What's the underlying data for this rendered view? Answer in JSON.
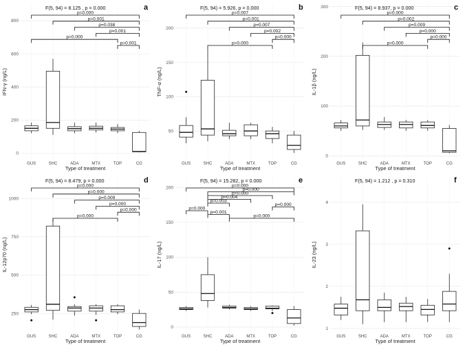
{
  "chart_data": [
    {
      "type": "boxplot",
      "panel": "a",
      "stat": "F(5, 94) = 8.125 , p = 0.000",
      "ylabel": "IFN-γ (ng/L)",
      "xlabel": "Type of treatment",
      "categories": [
        "GUS",
        "SHC",
        "ADA",
        "MTX",
        "TOP",
        "CG"
      ],
      "ylim": [
        -40,
        900
      ],
      "yticks": [
        0,
        200,
        400,
        600,
        800
      ],
      "boxes": [
        {
          "min": 120,
          "q1": 135,
          "median": 150,
          "q3": 165,
          "max": 185,
          "outliers": []
        },
        {
          "min": 110,
          "q1": 150,
          "median": 185,
          "q3": 495,
          "max": 570,
          "outliers": []
        },
        {
          "min": 120,
          "q1": 135,
          "median": 148,
          "q3": 160,
          "max": 185,
          "outliers": []
        },
        {
          "min": 125,
          "q1": 140,
          "median": 150,
          "q3": 163,
          "max": 185,
          "outliers": []
        },
        {
          "min": 120,
          "q1": 135,
          "median": 145,
          "q3": 155,
          "max": 175,
          "outliers": []
        },
        {
          "min": 5,
          "q1": 8,
          "median": 10,
          "q3": 125,
          "max": 135,
          "outliers": []
        }
      ],
      "brackets": [
        {
          "from": 0,
          "to": 5,
          "label": "p=0.000"
        },
        {
          "from": 1,
          "to": 5,
          "label": "p=0.001"
        },
        {
          "from": 2,
          "to": 5,
          "label": "p=0.038"
        },
        {
          "from": 3,
          "to": 5,
          "label": "p=0.001"
        },
        {
          "from": 0,
          "to": 4,
          "label": "p=0.000"
        },
        {
          "from": 4,
          "to": 5,
          "label": "p=0.001"
        }
      ]
    },
    {
      "type": "boxplot",
      "panel": "b",
      "stat": "F(5, 94) = 5.926, p = 0.000",
      "ylabel": "TNF-α (ng/L)",
      "xlabel": "Type of treatment",
      "categories": [
        "GUS",
        "SHC",
        "ADA",
        "MTX",
        "TOP",
        "CG"
      ],
      "ylim": [
        8,
        235
      ],
      "yticks": [
        50,
        100,
        150,
        200
      ],
      "boxes": [
        {
          "min": 32,
          "q1": 41,
          "median": 48,
          "q3": 58,
          "max": 70,
          "outliers": [
            107
          ]
        },
        {
          "min": 35,
          "q1": 44,
          "median": 53,
          "q3": 124,
          "max": 170,
          "outliers": []
        },
        {
          "min": 38,
          "q1": 43,
          "median": 46,
          "q3": 51,
          "max": 62,
          "outliers": []
        },
        {
          "min": 38,
          "q1": 43,
          "median": 50,
          "q3": 59,
          "max": 62,
          "outliers": []
        },
        {
          "min": 32,
          "q1": 39,
          "median": 46,
          "q3": 50,
          "max": 56,
          "outliers": []
        },
        {
          "min": 18,
          "q1": 23,
          "median": 29,
          "q3": 44,
          "max": 50,
          "outliers": []
        }
      ],
      "brackets": [
        {
          "from": 0,
          "to": 5,
          "label": "p=0.007"
        },
        {
          "from": 1,
          "to": 5,
          "label": "p=0.001"
        },
        {
          "from": 2,
          "to": 5,
          "label": "p=0.007"
        },
        {
          "from": 3,
          "to": 5,
          "label": "p=0.002"
        },
        {
          "from": 4,
          "to": 5,
          "label": "p=0.000"
        },
        {
          "from": 1,
          "to": 4,
          "label": "p=0.000"
        }
      ]
    },
    {
      "type": "boxplot",
      "panel": "c",
      "stat": "F(5, 94) = 8.937, p = 0.000",
      "ylabel": "IL-1β (ng/L)",
      "xlabel": "Type of treatment",
      "categories": [
        "GUS",
        "SHC",
        "ADA",
        "MTX",
        "TOP",
        "CG"
      ],
      "ylim": [
        -8,
        305
      ],
      "yticks": [
        0,
        100,
        200,
        300
      ],
      "boxes": [
        {
          "min": 50,
          "q1": 56,
          "median": 60,
          "q3": 66,
          "max": 72,
          "outliers": []
        },
        {
          "min": 52,
          "q1": 60,
          "median": 72,
          "q3": 202,
          "max": 228,
          "outliers": []
        },
        {
          "min": 52,
          "q1": 57,
          "median": 63,
          "q3": 68,
          "max": 78,
          "outliers": []
        },
        {
          "min": 50,
          "q1": 56,
          "median": 63,
          "q3": 68,
          "max": 72,
          "outliers": []
        },
        {
          "min": 50,
          "q1": 56,
          "median": 61,
          "q3": 68,
          "max": 72,
          "outliers": []
        },
        {
          "min": 5,
          "q1": 7,
          "median": 10,
          "q3": 55,
          "max": 62,
          "outliers": []
        }
      ],
      "brackets": [
        {
          "from": 0,
          "to": 5,
          "label": "p=0.000"
        },
        {
          "from": 1,
          "to": 5,
          "label": "p=0.002"
        },
        {
          "from": 2,
          "to": 5,
          "label": "p=0.009"
        },
        {
          "from": 3,
          "to": 5,
          "label": "p=0.000"
        },
        {
          "from": 4,
          "to": 5,
          "label": "p=0.000"
        },
        {
          "from": 1,
          "to": 4,
          "label": "p=0.000"
        }
      ]
    },
    {
      "type": "boxplot",
      "panel": "d",
      "stat": "F(5, 94) = 8.479, p = 0.000",
      "ylabel": "IL-12p70 (ng/L)",
      "xlabel": "Type of treatment",
      "categories": [
        "GUS",
        "SHC",
        "ADA",
        "MTX",
        "TOP",
        "CG"
      ],
      "ylim": [
        125,
        1140
      ],
      "yticks": [
        250,
        500,
        750,
        1000
      ],
      "boxes": [
        {
          "min": 245,
          "q1": 260,
          "median": 275,
          "q3": 290,
          "max": 305,
          "outliers": [
            205
          ]
        },
        {
          "min": 210,
          "q1": 270,
          "median": 310,
          "q3": 820,
          "max": 870,
          "outliers": []
        },
        {
          "min": 235,
          "q1": 265,
          "median": 285,
          "q3": 295,
          "max": 310,
          "outliers": [
            355
          ]
        },
        {
          "min": 240,
          "q1": 265,
          "median": 285,
          "q3": 300,
          "max": 310,
          "outliers": [
            205
          ]
        },
        {
          "min": 245,
          "q1": 260,
          "median": 275,
          "q3": 300,
          "max": 310,
          "outliers": []
        },
        {
          "min": 145,
          "q1": 165,
          "median": 190,
          "q3": 250,
          "max": 275,
          "outliers": []
        }
      ],
      "brackets": [
        {
          "from": 0,
          "to": 5,
          "label": "p=0.000"
        },
        {
          "from": 1,
          "to": 5,
          "label": "p=0.000"
        },
        {
          "from": 2,
          "to": 5,
          "label": "p=0.009"
        },
        {
          "from": 3,
          "to": 5,
          "label": "p=0.000"
        },
        {
          "from": 4,
          "to": 5,
          "label": "p=0.000"
        },
        {
          "from": 1,
          "to": 4,
          "label": "p=0.000"
        }
      ]
    },
    {
      "type": "boxplot",
      "panel": "e",
      "stat": "F(5, 94) = 15.282, p = 0.000",
      "ylabel": "IL-17 (ng/L)",
      "xlabel": "Type of treatment",
      "categories": [
        "GUS",
        "SHC",
        "ADA",
        "MTX",
        "TOP",
        "CG"
      ],
      "ylim": [
        -8,
        215
      ],
      "yticks": [
        0,
        50,
        100,
        150,
        200
      ],
      "boxes": [
        {
          "min": 23,
          "q1": 25,
          "median": 26,
          "q3": 28,
          "max": 30,
          "outliers": []
        },
        {
          "min": 28,
          "q1": 38,
          "median": 48,
          "q3": 75,
          "max": 100,
          "outliers": []
        },
        {
          "min": 25,
          "q1": 27,
          "median": 28,
          "q3": 30,
          "max": 32,
          "outliers": []
        },
        {
          "min": 23,
          "q1": 25,
          "median": 26,
          "q3": 28,
          "max": 30,
          "outliers": []
        },
        {
          "min": 23,
          "q1": 26,
          "median": 27,
          "q3": 30,
          "max": 31,
          "outliers": [
            20
          ]
        },
        {
          "min": 2,
          "q1": 5,
          "median": 13,
          "q3": 25,
          "max": 30,
          "outliers": []
        }
      ],
      "brackets": [
        {
          "from": 0,
          "to": 5,
          "label": "p=0.000"
        },
        {
          "from": 1,
          "to": 5,
          "label": "p=0.000"
        },
        {
          "from": 1,
          "to": 4,
          "label": "p=0.000"
        },
        {
          "from": 1,
          "to": 3,
          "label": "p=0.004"
        },
        {
          "from": 1,
          "to": 2,
          "label": "p=0.003"
        },
        {
          "from": 4,
          "to": 5,
          "label": "p=0.000"
        },
        {
          "from": 0,
          "to": 1,
          "label": "p=0.000"
        },
        {
          "from": 1,
          "to": 2,
          "label": "p=0.001"
        },
        {
          "from": 2,
          "to": 5,
          "label": "p=0.000"
        }
      ]
    },
    {
      "type": "boxplot",
      "panel": "f",
      "stat": "F(5, 94) = 1.212 , p = 0.310",
      "ylabel": "IL-23 (ng/L)",
      "xlabel": "Type of treatment",
      "categories": [
        "GUS",
        "SHC",
        "ADA",
        "MTX",
        "TOP",
        "CG"
      ],
      "ylim": [
        0.9,
        4.6
      ],
      "yticks": [
        1,
        2,
        3,
        4
      ],
      "boxes": [
        {
          "min": 1.2,
          "q1": 1.32,
          "median": 1.48,
          "q3": 1.58,
          "max": 1.75,
          "outliers": []
        },
        {
          "min": 1.1,
          "q1": 1.42,
          "median": 1.68,
          "q3": 3.32,
          "max": 3.95,
          "outliers": []
        },
        {
          "min": 1.15,
          "q1": 1.42,
          "median": 1.5,
          "q3": 1.68,
          "max": 1.85,
          "outliers": []
        },
        {
          "min": 1.15,
          "q1": 1.42,
          "median": 1.52,
          "q3": 1.6,
          "max": 1.75,
          "outliers": []
        },
        {
          "min": 1.15,
          "q1": 1.32,
          "median": 1.45,
          "q3": 1.55,
          "max": 1.7,
          "outliers": []
        },
        {
          "min": 1.15,
          "q1": 1.42,
          "median": 1.58,
          "q3": 1.88,
          "max": 2.3,
          "outliers": [
            2.9
          ]
        }
      ],
      "brackets": []
    }
  ]
}
